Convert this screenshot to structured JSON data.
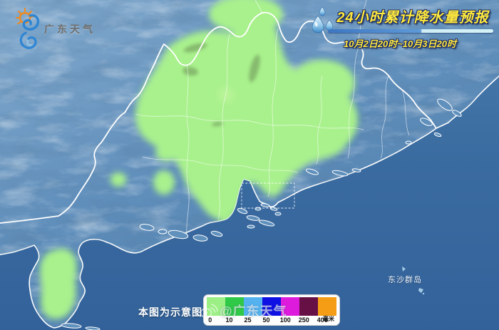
{
  "header": {
    "logo": {
      "text": "广东天气",
      "icon": "sun-swirl-logo-icon"
    },
    "title": "24小时累计降水量预报",
    "date_range": "10月2日20时~10月3日20时",
    "drops_icon": "raindrops-icon",
    "title_color": "#ffe93c"
  },
  "map": {
    "labels": {
      "dongsha": "东沙群岛"
    },
    "colors": {
      "sea": "#3a6ba0",
      "land": "#5f8ebb",
      "rain": "#a9f18d",
      "boundary": "#ffffff"
    }
  },
  "footer": {
    "disclaimer": "本图为示意图",
    "watermark": {
      "text": "@广东天气",
      "icon": "weibo-icon"
    },
    "legend": {
      "unit": "毫米",
      "items": [
        {
          "label": "0",
          "color": "#9bef84"
        },
        {
          "label": "10",
          "color": "#2fc847"
        },
        {
          "label": "25",
          "color": "#54b2ef"
        },
        {
          "label": "50",
          "color": "#0f10e3"
        },
        {
          "label": "100",
          "color": "#dc1bdc"
        },
        {
          "label": "250",
          "color": "#671046"
        },
        {
          "label": "400",
          "color": "#f59d15"
        }
      ]
    }
  }
}
